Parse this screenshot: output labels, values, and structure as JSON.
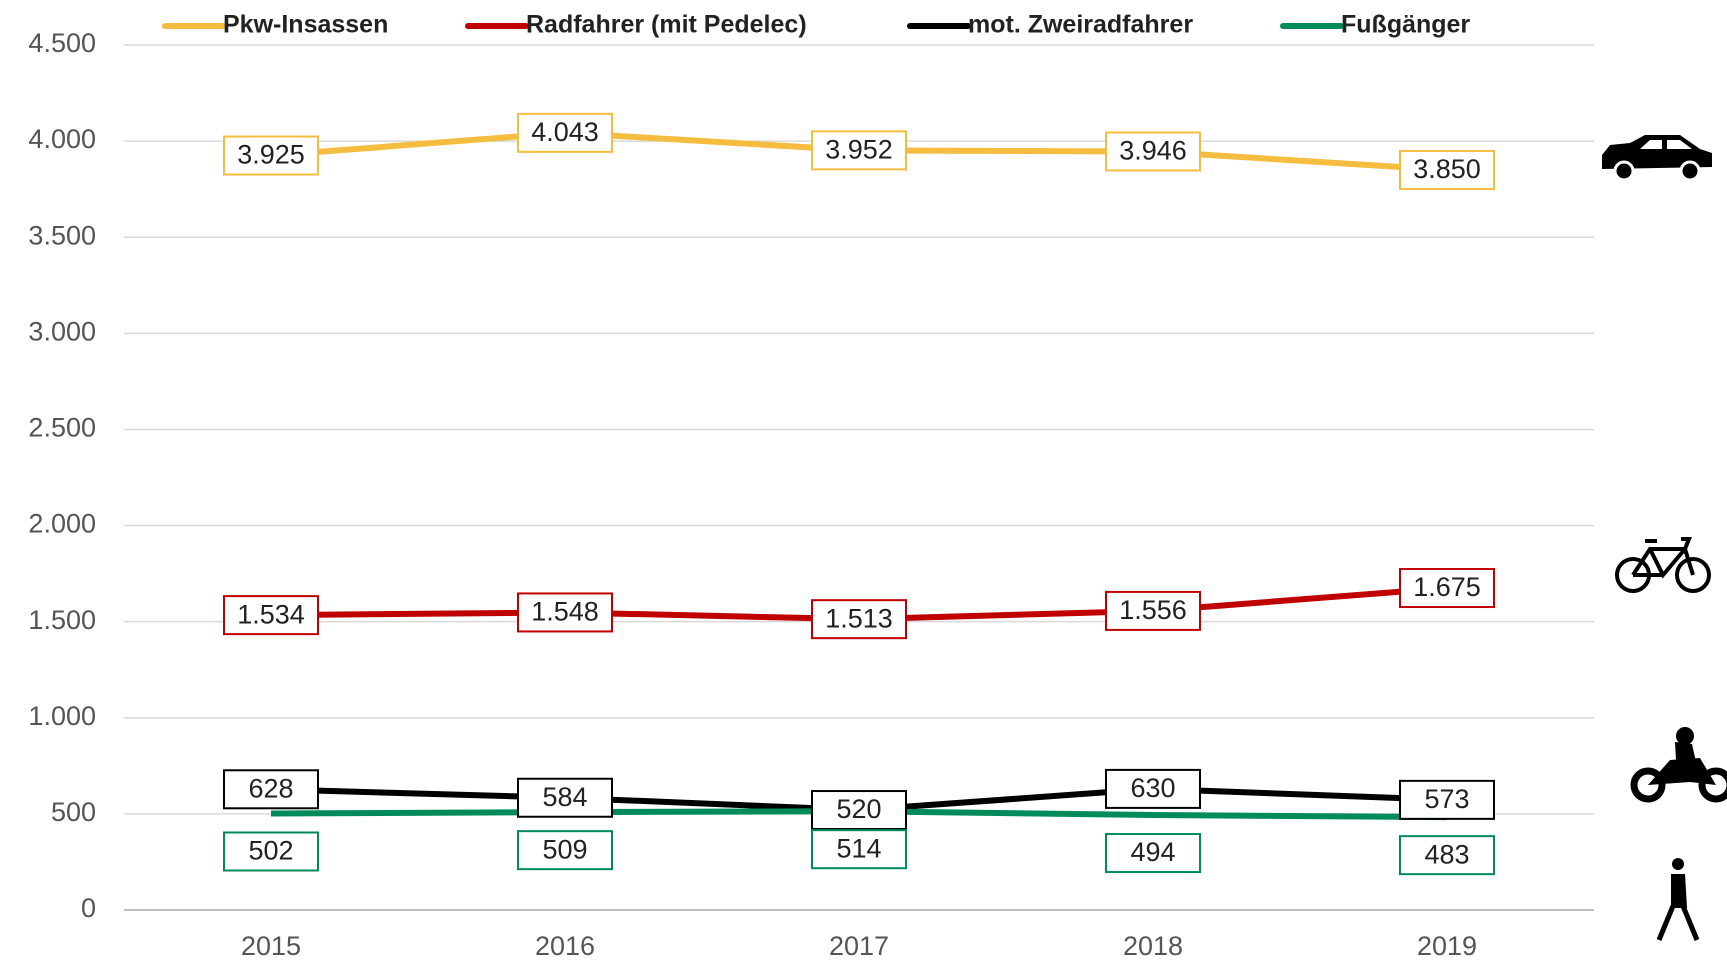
{
  "chart_data": {
    "type": "line",
    "categories": [
      "2015",
      "2016",
      "2017",
      "2018",
      "2019"
    ],
    "series": [
      {
        "name": "Pkw-Insassen",
        "color": "#f5bd40",
        "values": [
          3925,
          4043,
          3952,
          3946,
          3850
        ],
        "value_labels": [
          "3.925",
          "4.043",
          "3.952",
          "3.946",
          "3.850"
        ]
      },
      {
        "name": "Radfahrer (mit Pedelec)",
        "color": "#c00000",
        "values": [
          1534,
          1548,
          1513,
          1556,
          1675
        ],
        "value_labels": [
          "1.534",
          "1.548",
          "1.513",
          "1.556",
          "1.675"
        ]
      },
      {
        "name": "mot. Zweiradfahrer",
        "color": "#000000",
        "values": [
          628,
          584,
          520,
          630,
          573
        ]
      },
      {
        "name": "Fußgänger",
        "color": "#008c5a",
        "values": [
          502,
          509,
          514,
          494,
          483
        ]
      }
    ],
    "ylim": [
      0,
      4500
    ],
    "yticks": [
      0,
      500,
      {
        "value": 1000,
        "label": "1.000"
      },
      {
        "value": 1500,
        "label": "1.500"
      },
      {
        "value": 2000,
        "label": "2.000"
      },
      {
        "value": 2500,
        "label": "2.500"
      },
      {
        "value": 3000,
        "label": "3.000"
      },
      {
        "value": 3500,
        "label": "3.500"
      },
      {
        "value": 4000,
        "label": "4.000"
      },
      {
        "value": 4500,
        "label": "4.500"
      }
    ],
    "grid": true,
    "legend": "top"
  }
}
